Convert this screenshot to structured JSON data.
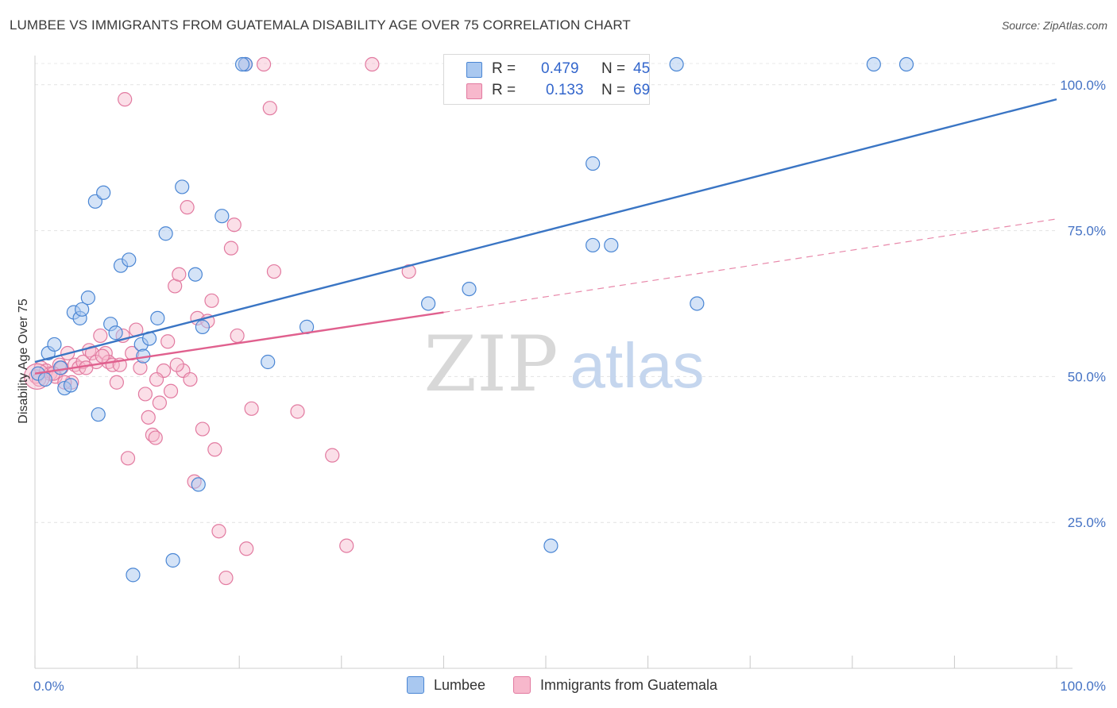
{
  "title": "LUMBEE VS IMMIGRANTS FROM GUATEMALA DISABILITY AGE OVER 75 CORRELATION CHART",
  "source": "Source: ZipAtlas.com",
  "watermark": {
    "zip": "ZIP",
    "atlas": "atlas"
  },
  "legend": {
    "r_label": "R =",
    "n_label": "N =",
    "rows": [
      {
        "r": "0.479",
        "n": "45"
      },
      {
        "r": "0.133",
        "n": "69"
      }
    ]
  },
  "colors": {
    "lumbee_fill": "#a9c8f0",
    "lumbee_stroke": "#4a86d4",
    "lumbee_line": "#3a75c4",
    "guat_fill": "#f7b8cc",
    "guat_stroke": "#e27aa0",
    "guat_line": "#e0608e"
  },
  "chart_data": {
    "type": "scatter",
    "title": "LUMBEE VS IMMIGRANTS FROM GUATEMALA DISABILITY AGE OVER 75 CORRELATION CHART",
    "xlabel": "",
    "ylabel": "Disability Age Over 75",
    "xlim": [
      0,
      100
    ],
    "ylim": [
      0,
      105
    ],
    "x_tick_labels": [
      "0.0%",
      "100.0%"
    ],
    "y_tick_labels": [
      "25.0%",
      "50.0%",
      "75.0%",
      "100.0%"
    ],
    "y_ticks": [
      25,
      50,
      75,
      100
    ],
    "grid": true,
    "legend_position": "top-center",
    "series": [
      {
        "name": "Lumbee",
        "r": 0.479,
        "n": 45,
        "trend": {
          "x": [
            0,
            100
          ],
          "y": [
            52.5,
            97.5
          ]
        },
        "points": [
          [
            0.3,
            50.5
          ],
          [
            1.0,
            49.5
          ],
          [
            1.3,
            54.0
          ],
          [
            1.9,
            55.5
          ],
          [
            2.5,
            51.5
          ],
          [
            2.9,
            48.0
          ],
          [
            3.5,
            48.5
          ],
          [
            3.8,
            61.0
          ],
          [
            4.4,
            60.0
          ],
          [
            4.6,
            61.5
          ],
          [
            5.2,
            63.5
          ],
          [
            5.9,
            80.0
          ],
          [
            6.2,
            43.5
          ],
          [
            6.7,
            81.5
          ],
          [
            7.4,
            59.0
          ],
          [
            7.9,
            57.5
          ],
          [
            8.4,
            69.0
          ],
          [
            9.2,
            70.0
          ],
          [
            9.6,
            16.0
          ],
          [
            10.4,
            55.5
          ],
          [
            10.6,
            53.5
          ],
          [
            11.2,
            56.5
          ],
          [
            12.0,
            60.0
          ],
          [
            12.8,
            74.5
          ],
          [
            13.5,
            18.5
          ],
          [
            14.4,
            82.5
          ],
          [
            15.7,
            67.5
          ],
          [
            16.4,
            58.5
          ],
          [
            16.0,
            31.5
          ],
          [
            18.3,
            77.5
          ],
          [
            20.6,
            103.5
          ],
          [
            22.8,
            52.5
          ],
          [
            26.6,
            58.5
          ],
          [
            38.5,
            62.5
          ],
          [
            41.0,
            103.5
          ],
          [
            42.5,
            65.0
          ],
          [
            54.6,
            86.5
          ],
          [
            54.6,
            72.5
          ],
          [
            56.4,
            72.5
          ],
          [
            62.8,
            103.5
          ],
          [
            64.8,
            62.5
          ],
          [
            82.1,
            103.5
          ],
          [
            85.3,
            103.5
          ],
          [
            20.3,
            103.5
          ],
          [
            50.5,
            21.0
          ]
        ]
      },
      {
        "name": "Immigrants from Guatemala",
        "r": 0.133,
        "n": 69,
        "trend_solid": {
          "x": [
            0,
            40
          ],
          "y": [
            50.5,
            61.0
          ]
        },
        "trend_dashed": {
          "x": [
            40,
            100
          ],
          "y": [
            61.0,
            77.0
          ]
        },
        "points": [
          [
            0.1,
            50.0
          ],
          [
            0.6,
            51.5
          ],
          [
            1.1,
            51.0
          ],
          [
            1.5,
            50.5
          ],
          [
            2.0,
            50.0
          ],
          [
            2.4,
            52.0
          ],
          [
            2.6,
            51.5
          ],
          [
            3.2,
            54.0
          ],
          [
            3.6,
            49.0
          ],
          [
            3.9,
            52.0
          ],
          [
            4.3,
            51.5
          ],
          [
            4.7,
            52.5
          ],
          [
            5.3,
            54.5
          ],
          [
            5.6,
            54.0
          ],
          [
            6.0,
            52.5
          ],
          [
            6.4,
            57.0
          ],
          [
            6.9,
            54.0
          ],
          [
            7.2,
            52.5
          ],
          [
            7.6,
            52.0
          ],
          [
            8.0,
            49.0
          ],
          [
            8.6,
            57.0
          ],
          [
            8.8,
            97.5
          ],
          [
            9.1,
            36.0
          ],
          [
            9.5,
            54.0
          ],
          [
            9.9,
            58.0
          ],
          [
            10.3,
            51.5
          ],
          [
            10.8,
            47.0
          ],
          [
            11.1,
            43.0
          ],
          [
            11.5,
            40.0
          ],
          [
            11.8,
            39.5
          ],
          [
            12.2,
            45.5
          ],
          [
            12.6,
            51.0
          ],
          [
            13.0,
            56.0
          ],
          [
            13.3,
            47.5
          ],
          [
            13.7,
            65.5
          ],
          [
            14.1,
            67.5
          ],
          [
            14.5,
            51.0
          ],
          [
            14.9,
            79.0
          ],
          [
            15.2,
            49.5
          ],
          [
            15.6,
            32.0
          ],
          [
            15.9,
            60.0
          ],
          [
            16.4,
            41.0
          ],
          [
            16.9,
            59.5
          ],
          [
            17.3,
            63.0
          ],
          [
            17.6,
            37.5
          ],
          [
            18.0,
            23.5
          ],
          [
            18.7,
            15.5
          ],
          [
            19.2,
            72.0
          ],
          [
            19.5,
            76.0
          ],
          [
            19.8,
            57.0
          ],
          [
            20.7,
            20.5
          ],
          [
            21.2,
            44.5
          ],
          [
            22.4,
            103.5
          ],
          [
            23.0,
            96.0
          ],
          [
            23.4,
            68.0
          ],
          [
            25.7,
            44.0
          ],
          [
            29.1,
            36.5
          ],
          [
            30.5,
            21.0
          ],
          [
            33.0,
            103.5
          ],
          [
            36.6,
            68.0
          ],
          [
            0.4,
            49.5
          ],
          [
            1.8,
            50.5
          ],
          [
            2.9,
            49.0
          ],
          [
            5.0,
            51.5
          ],
          [
            6.6,
            53.5
          ],
          [
            8.3,
            52.0
          ],
          [
            11.9,
            49.5
          ],
          [
            13.9,
            52.0
          ],
          [
            20.6,
            103.5
          ]
        ]
      }
    ]
  },
  "bottom_legend": [
    {
      "label": "Lumbee"
    },
    {
      "label": "Immigrants from Guatemala"
    }
  ]
}
